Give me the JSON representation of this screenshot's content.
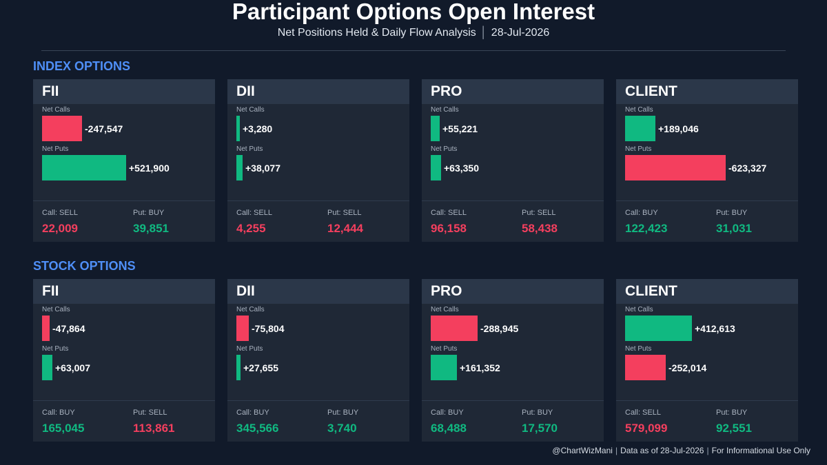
{
  "header": {
    "title": "Participant Options Open Interest",
    "subtitle": "Net Positions Held & Daily Flow Analysis",
    "date": "28-Jul-2026"
  },
  "colors": {
    "positive": "#10b981",
    "negative": "#f43f5e",
    "accent": "#4f8ff7"
  },
  "labels": {
    "net_calls": "Net Calls",
    "net_puts": "Net Puts"
  },
  "chart_data": {
    "type": "bar",
    "bar_scale_max": 623327,
    "sections": [
      {
        "title": "INDEX OPTIONS",
        "participants": [
          {
            "name": "FII",
            "net_calls": -247547,
            "net_calls_label": "-247,547",
            "net_puts": 521900,
            "net_puts_label": "+521,900",
            "call_action": "Call: SELL",
            "call_value": "22,009",
            "call_color": "#f43f5e",
            "put_action": "Put: BUY",
            "put_value": "39,851",
            "put_color": "#10b981"
          },
          {
            "name": "DII",
            "net_calls": 3280,
            "net_calls_label": "+3,280",
            "net_puts": 38077,
            "net_puts_label": "+38,077",
            "call_action": "Call: SELL",
            "call_value": "4,255",
            "call_color": "#f43f5e",
            "put_action": "Put: SELL",
            "put_value": "12,444",
            "put_color": "#f43f5e"
          },
          {
            "name": "PRO",
            "net_calls": 55221,
            "net_calls_label": "+55,221",
            "net_puts": 63350,
            "net_puts_label": "+63,350",
            "call_action": "Call: SELL",
            "call_value": "96,158",
            "call_color": "#f43f5e",
            "put_action": "Put: SELL",
            "put_value": "58,438",
            "put_color": "#f43f5e"
          },
          {
            "name": "CLIENT",
            "net_calls": 189046,
            "net_calls_label": "+189,046",
            "net_puts": -623327,
            "net_puts_label": "-623,327",
            "call_action": "Call: BUY",
            "call_value": "122,423",
            "call_color": "#10b981",
            "put_action": "Put: BUY",
            "put_value": "31,031",
            "put_color": "#10b981"
          }
        ]
      },
      {
        "title": "STOCK OPTIONS",
        "participants": [
          {
            "name": "FII",
            "net_calls": -47864,
            "net_calls_label": "-47,864",
            "net_puts": 63007,
            "net_puts_label": "+63,007",
            "call_action": "Call: BUY",
            "call_value": "165,045",
            "call_color": "#10b981",
            "put_action": "Put: SELL",
            "put_value": "113,861",
            "put_color": "#f43f5e"
          },
          {
            "name": "DII",
            "net_calls": -75804,
            "net_calls_label": "-75,804",
            "net_puts": 27655,
            "net_puts_label": "+27,655",
            "call_action": "Call: BUY",
            "call_value": "345,566",
            "call_color": "#10b981",
            "put_action": "Put: BUY",
            "put_value": "3,740",
            "put_color": "#10b981"
          },
          {
            "name": "PRO",
            "net_calls": -288945,
            "net_calls_label": "-288,945",
            "net_puts": 161352,
            "net_puts_label": "+161,352",
            "call_action": "Call: BUY",
            "call_value": "68,488",
            "call_color": "#10b981",
            "put_action": "Put: BUY",
            "put_value": "17,570",
            "put_color": "#10b981"
          },
          {
            "name": "CLIENT",
            "net_calls": 412613,
            "net_calls_label": "+412,613",
            "net_puts": -252014,
            "net_puts_label": "-252,014",
            "call_action": "Call: SELL",
            "call_value": "579,099",
            "call_color": "#f43f5e",
            "put_action": "Put: BUY",
            "put_value": "92,551",
            "put_color": "#10b981"
          }
        ]
      }
    ]
  },
  "footer": {
    "handle": "@ChartWizMani",
    "data_as_of": "Data as of 28-Jul-2026",
    "disclaimer": "For Informational Use Only"
  }
}
